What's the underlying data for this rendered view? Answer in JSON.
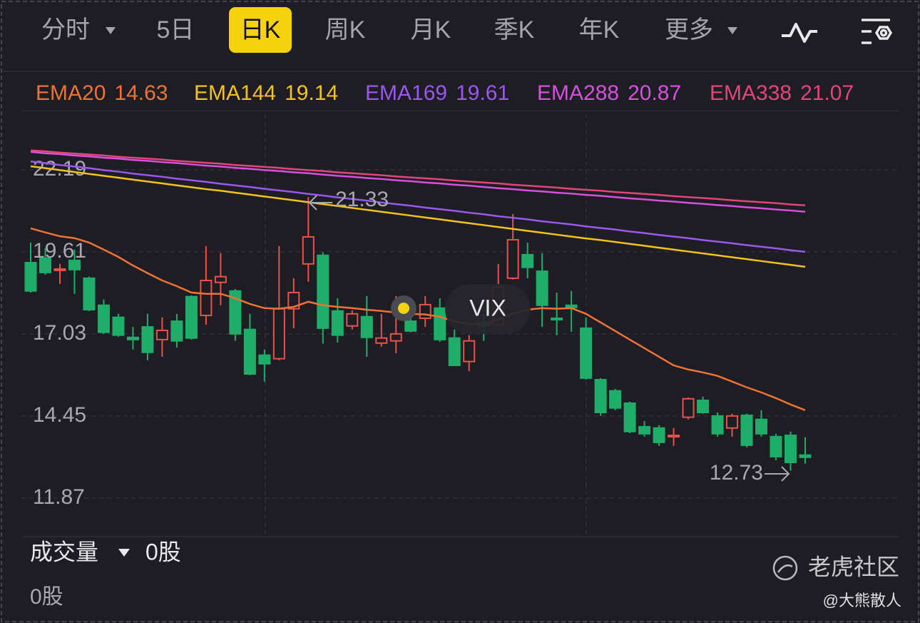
{
  "tabs": [
    "分时",
    "5日",
    "日K",
    "周K",
    "月K",
    "季K",
    "年K",
    "更多"
  ],
  "chart_data": {
    "type": "candlestick",
    "symbol": "VIX",
    "up_color": "#e5534b",
    "down_color": "#1fae6a",
    "ylim": [
      10.7,
      23.04
    ],
    "yticks": [
      22.19,
      19.61,
      17.03,
      14.45,
      11.87
    ],
    "grid": true,
    "open": [
      19.27,
      19.41,
      19.03,
      19.34,
      18.78,
      17.93,
      17.55,
      16.92,
      17.25,
      16.85,
      17.43,
      18.2,
      17.61,
      18.65,
      18.38,
      17.17,
      16.36,
      16.25,
      17.82,
      19.23,
      19.5,
      17.75,
      17.28,
      17.57,
      16.74,
      16.81,
      17.43,
      17.52,
      17.84,
      16.9,
      16.16,
      17.39,
      17.32,
      18.78,
      19.52,
      19.0,
      17.52,
      17.93,
      17.21,
      15.59,
      15.24,
      14.85,
      14.11,
      14.07,
      13.8,
      14.41,
      14.94,
      14.45,
      14.07,
      14.47,
      14.34,
      13.8,
      13.84,
      13.22
    ],
    "high": [
      19.9,
      19.72,
      19.23,
      19.68,
      18.83,
      18.11,
      17.66,
      17.25,
      17.66,
      17.55,
      17.66,
      18.24,
      19.79,
      19.57,
      18.44,
      17.66,
      16.54,
      19.79,
      18.78,
      21.33,
      19.59,
      18.15,
      17.77,
      18.22,
      17.66,
      18.22,
      17.88,
      18.22,
      18.15,
      17.17,
      16.99,
      17.66,
      19.23,
      20.8,
      19.9,
      19.57,
      18.33,
      18.38,
      17.55,
      15.64,
      15.3,
      14.9,
      14.29,
      14.16,
      14.07,
      15.03,
      15.06,
      14.56,
      14.52,
      14.52,
      14.63,
      13.89,
      13.96,
      13.78
    ],
    "low": [
      18.33,
      18.89,
      18.6,
      18.29,
      17.75,
      17.03,
      16.94,
      16.54,
      16.2,
      16.31,
      16.6,
      16.85,
      17.32,
      17.93,
      16.81,
      15.73,
      15.53,
      16.2,
      17.21,
      18.67,
      16.72,
      16.76,
      17.17,
      16.31,
      16.63,
      16.42,
      17.08,
      17.25,
      16.78,
      16.02,
      15.86,
      16.81,
      17.25,
      18.74,
      18.78,
      17.25,
      16.99,
      17.1,
      15.59,
      14.45,
      14.63,
      13.91,
      13.8,
      13.51,
      13.51,
      14.34,
      14.52,
      13.8,
      13.8,
      13.46,
      13.8,
      13.06,
      12.73,
      12.95
    ],
    "close": [
      18.38,
      18.96,
      19.07,
      19.05,
      17.79,
      17.08,
      16.99,
      16.85,
      16.45,
      17.14,
      16.81,
      16.9,
      18.71,
      18.83,
      17.03,
      15.77,
      16.09,
      17.82,
      18.33,
      20.08,
      17.21,
      16.99,
      17.66,
      16.92,
      16.9,
      17.03,
      17.12,
      17.95,
      16.85,
      16.04,
      16.81,
      17.28,
      18.51,
      19.99,
      19.12,
      17.93,
      17.48,
      17.86,
      15.64,
      14.56,
      14.7,
      13.96,
      13.89,
      13.62,
      13.84,
      14.99,
      14.56,
      13.89,
      14.45,
      13.53,
      13.89,
      13.17,
      12.99,
      13.15
    ],
    "lines": [
      {
        "name": "EMA20",
        "color": "#f07236",
        "values": [
          20.35,
          20.22,
          20.1,
          20.04,
          19.9,
          19.68,
          19.45,
          19.18,
          18.94,
          18.71,
          18.53,
          18.33,
          18.29,
          18.29,
          18.15,
          17.97,
          17.84,
          17.82,
          17.88,
          18.04,
          17.93,
          17.88,
          17.84,
          17.79,
          17.75,
          17.7,
          17.66,
          17.64,
          17.57,
          17.43,
          17.34,
          17.34,
          17.48,
          17.66,
          17.79,
          17.84,
          17.82,
          17.84,
          17.66,
          17.39,
          17.12,
          16.85,
          16.58,
          16.31,
          16.04,
          15.91,
          15.82,
          15.71,
          15.53,
          15.35,
          15.19,
          15.01,
          14.81,
          14.63
        ]
      },
      {
        "name": "EMA144",
        "color": "#f3c21b",
        "values": [
          22.3,
          22.24,
          22.18,
          22.12,
          22.06,
          22.0,
          21.94,
          21.88,
          21.82,
          21.76,
          21.7,
          21.64,
          21.58,
          21.53,
          21.47,
          21.41,
          21.35,
          21.29,
          21.23,
          21.17,
          21.11,
          21.05,
          20.99,
          20.93,
          20.87,
          20.81,
          20.75,
          20.69,
          20.63,
          20.57,
          20.51,
          20.45,
          20.39,
          20.33,
          20.27,
          20.21,
          20.15,
          20.09,
          20.03,
          19.98,
          19.92,
          19.86,
          19.8,
          19.74,
          19.68,
          19.62,
          19.56,
          19.5,
          19.44,
          19.38,
          19.32,
          19.26,
          19.2,
          19.14
        ]
      },
      {
        "name": "EMA169",
        "color": "#9a58ee",
        "values": [
          22.45,
          22.4,
          22.34,
          22.29,
          22.24,
          22.18,
          22.13,
          22.07,
          22.02,
          21.97,
          21.91,
          21.86,
          21.81,
          21.75,
          21.7,
          21.65,
          21.59,
          21.54,
          21.49,
          21.43,
          21.38,
          21.32,
          21.27,
          21.22,
          21.16,
          21.11,
          21.06,
          21.0,
          20.95,
          20.9,
          20.84,
          20.79,
          20.73,
          20.68,
          20.63,
          20.57,
          20.52,
          20.47,
          20.41,
          20.36,
          20.31,
          20.25,
          20.2,
          20.14,
          20.09,
          20.04,
          19.98,
          19.93,
          19.88,
          19.82,
          19.77,
          19.72,
          19.66,
          19.61
        ]
      },
      {
        "name": "EMA288",
        "color": "#d650de",
        "values": [
          22.75,
          22.71,
          22.68,
          22.64,
          22.61,
          22.57,
          22.54,
          22.5,
          22.47,
          22.43,
          22.4,
          22.36,
          22.32,
          22.29,
          22.25,
          22.22,
          22.18,
          22.15,
          22.11,
          22.08,
          22.04,
          22.0,
          21.97,
          21.93,
          21.9,
          21.86,
          21.83,
          21.79,
          21.76,
          21.72,
          21.69,
          21.65,
          21.61,
          21.58,
          21.54,
          21.51,
          21.47,
          21.44,
          21.4,
          21.37,
          21.33,
          21.29,
          21.26,
          21.22,
          21.19,
          21.15,
          21.12,
          21.08,
          21.05,
          21.01,
          20.98,
          20.94,
          20.91,
          20.87
        ]
      },
      {
        "name": "EMA338",
        "color": "#e2457a",
        "values": [
          22.8,
          22.77,
          22.73,
          22.7,
          22.67,
          22.64,
          22.6,
          22.57,
          22.54,
          22.51,
          22.47,
          22.44,
          22.41,
          22.38,
          22.34,
          22.31,
          22.28,
          22.25,
          22.21,
          22.18,
          22.15,
          22.11,
          22.08,
          22.05,
          22.02,
          21.98,
          21.95,
          21.92,
          21.89,
          21.85,
          21.82,
          21.79,
          21.76,
          21.72,
          21.69,
          21.66,
          21.63,
          21.59,
          21.56,
          21.53,
          21.49,
          21.46,
          21.43,
          21.4,
          21.36,
          21.33,
          21.3,
          21.27,
          21.23,
          21.2,
          21.17,
          21.14,
          21.1,
          21.07
        ]
      }
    ]
  },
  "volume": {
    "label": "成交量",
    "value": "0股",
    "axis_label": "0股"
  },
  "watermark": {
    "brand": "老虎社区",
    "author": "@大熊散人"
  }
}
